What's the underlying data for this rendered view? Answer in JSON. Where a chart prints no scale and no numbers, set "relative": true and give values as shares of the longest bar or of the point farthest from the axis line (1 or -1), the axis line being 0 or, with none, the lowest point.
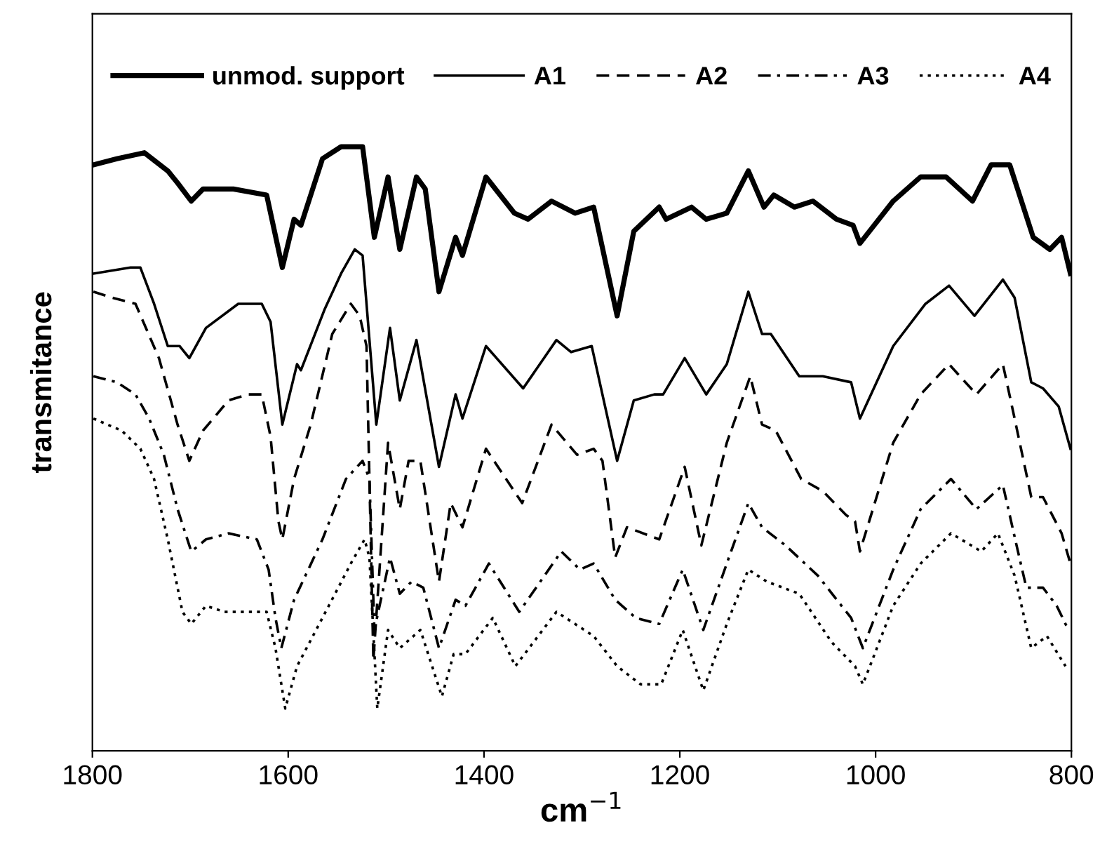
{
  "chart_data": {
    "type": "line",
    "relative": true,
    "xlabel": "cm$^{−1}$",
    "ylabel": "transmitance",
    "xlim": [
      1800,
      800
    ],
    "xticks": [
      1800,
      1600,
      1400,
      1200,
      1000,
      800
    ],
    "grid": false,
    "legend": "top",
    "tick_labels": "x",
    "series": [
      {
        "name": "unmod. support",
        "color": "#000000",
        "line_style": "solid",
        "x": [
          1799,
          1775,
          1747,
          1723,
          1713,
          1699,
          1687,
          1656,
          1622,
          1606,
          1594,
          1587,
          1565,
          1546,
          1524,
          1512,
          1498,
          1486,
          1469,
          1460,
          1446,
          1429,
          1422,
          1398,
          1369,
          1355,
          1331,
          1307,
          1288,
          1264,
          1247,
          1221,
          1214,
          1188,
          1173,
          1152,
          1130,
          1114,
          1104,
          1083,
          1064,
          1040,
          1023,
          1016,
          982,
          954,
          928,
          901,
          882,
          863,
          839,
          822,
          810,
          801
        ],
        "values": [
          0.97,
          0.98,
          0.99,
          0.96,
          0.94,
          0.91,
          0.93,
          0.93,
          0.92,
          0.8,
          0.88,
          0.87,
          0.98,
          1.0,
          1.0,
          0.85,
          0.95,
          0.83,
          0.95,
          0.93,
          0.76,
          0.85,
          0.82,
          0.95,
          0.89,
          0.88,
          0.91,
          0.89,
          0.9,
          0.72,
          0.86,
          0.9,
          0.88,
          0.9,
          0.88,
          0.89,
          0.96,
          0.9,
          0.92,
          0.9,
          0.91,
          0.88,
          0.87,
          0.84,
          0.91,
          0.95,
          0.95,
          0.91,
          0.97,
          0.97,
          0.85,
          0.83,
          0.85,
          0.79
        ]
      },
      {
        "name": "A1",
        "color": "#000000",
        "line_style": "solid",
        "x": [
          1799,
          1761,
          1751,
          1737,
          1723,
          1711,
          1701,
          1684,
          1651,
          1627,
          1618,
          1606,
          1591,
          1587,
          1563,
          1546,
          1532,
          1524,
          1510,
          1496,
          1486,
          1469,
          1446,
          1429,
          1422,
          1398,
          1360,
          1326,
          1311,
          1290,
          1264,
          1247,
          1226,
          1217,
          1195,
          1173,
          1152,
          1130,
          1116,
          1107,
          1078,
          1054,
          1025,
          1016,
          982,
          949,
          925,
          899,
          870,
          858,
          841,
          829,
          813,
          801
        ],
        "values": [
          0.79,
          0.8,
          0.8,
          0.74,
          0.67,
          0.67,
          0.65,
          0.7,
          0.74,
          0.74,
          0.71,
          0.54,
          0.64,
          0.63,
          0.73,
          0.79,
          0.83,
          0.82,
          0.54,
          0.7,
          0.58,
          0.68,
          0.47,
          0.59,
          0.55,
          0.67,
          0.6,
          0.68,
          0.66,
          0.67,
          0.48,
          0.58,
          0.59,
          0.59,
          0.65,
          0.59,
          0.64,
          0.76,
          0.69,
          0.69,
          0.62,
          0.62,
          0.61,
          0.55,
          0.67,
          0.74,
          0.77,
          0.72,
          0.78,
          0.75,
          0.61,
          0.6,
          0.57,
          0.5
        ]
      },
      {
        "name": "A2",
        "color": "#000000",
        "line_style": "dashed",
        "x": [
          1799,
          1780,
          1756,
          1732,
          1713,
          1701,
          1687,
          1661,
          1641,
          1627,
          1618,
          1610,
          1606,
          1594,
          1577,
          1555,
          1536,
          1527,
          1520,
          1513,
          1498,
          1486,
          1477,
          1465,
          1446,
          1434,
          1422,
          1398,
          1361,
          1331,
          1305,
          1288,
          1279,
          1266,
          1254,
          1221,
          1195,
          1178,
          1152,
          1128,
          1116,
          1102,
          1076,
          1054,
          1030,
          1021,
          1016,
          982,
          954,
          925,
          897,
          870,
          858,
          841,
          829,
          810,
          801
        ],
        "values": [
          0.76,
          0.75,
          0.74,
          0.65,
          0.54,
          0.48,
          0.53,
          0.58,
          0.59,
          0.59,
          0.52,
          0.38,
          0.35,
          0.45,
          0.54,
          0.69,
          0.74,
          0.72,
          0.67,
          0.15,
          0.51,
          0.4,
          0.48,
          0.48,
          0.28,
          0.41,
          0.37,
          0.5,
          0.41,
          0.54,
          0.49,
          0.5,
          0.48,
          0.32,
          0.37,
          0.35,
          0.47,
          0.34,
          0.51,
          0.62,
          0.54,
          0.53,
          0.45,
          0.43,
          0.39,
          0.38,
          0.33,
          0.51,
          0.59,
          0.64,
          0.59,
          0.64,
          0.55,
          0.42,
          0.42,
          0.36,
          0.31
        ]
      },
      {
        "name": "A3",
        "color": "#000000",
        "line_style": "dashdot",
        "x": [
          1799,
          1775,
          1756,
          1742,
          1727,
          1713,
          1699,
          1684,
          1661,
          1632,
          1620,
          1613,
          1607,
          1594,
          1565,
          1541,
          1524,
          1517,
          1512,
          1496,
          1486,
          1474,
          1462,
          1446,
          1429,
          1419,
          1395,
          1364,
          1321,
          1302,
          1288,
          1266,
          1245,
          1221,
          1197,
          1176,
          1152,
          1130,
          1116,
          1092,
          1059,
          1025,
          1013,
          982,
          954,
          923,
          897,
          870,
          856,
          846,
          829,
          815,
          803
        ],
        "values": [
          0.62,
          0.61,
          0.59,
          0.55,
          0.49,
          0.4,
          0.33,
          0.35,
          0.36,
          0.35,
          0.3,
          0.22,
          0.17,
          0.25,
          0.35,
          0.45,
          0.48,
          0.45,
          0.2,
          0.32,
          0.26,
          0.28,
          0.27,
          0.17,
          0.25,
          0.24,
          0.31,
          0.23,
          0.33,
          0.3,
          0.31,
          0.25,
          0.22,
          0.21,
          0.3,
          0.2,
          0.31,
          0.41,
          0.37,
          0.34,
          0.29,
          0.22,
          0.17,
          0.3,
          0.4,
          0.45,
          0.4,
          0.44,
          0.34,
          0.27,
          0.27,
          0.24,
          0.2
        ]
      },
      {
        "name": "A4",
        "color": "#000000",
        "line_style": "dotted",
        "x": [
          1799,
          1770,
          1751,
          1737,
          1723,
          1708,
          1699,
          1684,
          1665,
          1622,
          1613,
          1603,
          1591,
          1565,
          1536,
          1522,
          1517,
          1509,
          1498,
          1486,
          1465,
          1443,
          1431,
          1419,
          1391,
          1368,
          1326,
          1288,
          1264,
          1240,
          1219,
          1197,
          1176,
          1152,
          1130,
          1111,
          1078,
          1045,
          1021,
          1013,
          982,
          954,
          923,
          892,
          875,
          858,
          841,
          825,
          806
        ],
        "values": [
          0.55,
          0.53,
          0.5,
          0.45,
          0.35,
          0.23,
          0.21,
          0.24,
          0.23,
          0.23,
          0.17,
          0.07,
          0.14,
          0.22,
          0.31,
          0.35,
          0.32,
          0.07,
          0.2,
          0.17,
          0.2,
          0.09,
          0.16,
          0.16,
          0.22,
          0.14,
          0.23,
          0.19,
          0.14,
          0.11,
          0.11,
          0.2,
          0.1,
          0.21,
          0.3,
          0.28,
          0.26,
          0.18,
          0.14,
          0.11,
          0.24,
          0.31,
          0.36,
          0.33,
          0.36,
          0.29,
          0.17,
          0.19,
          0.14
        ]
      }
    ]
  }
}
